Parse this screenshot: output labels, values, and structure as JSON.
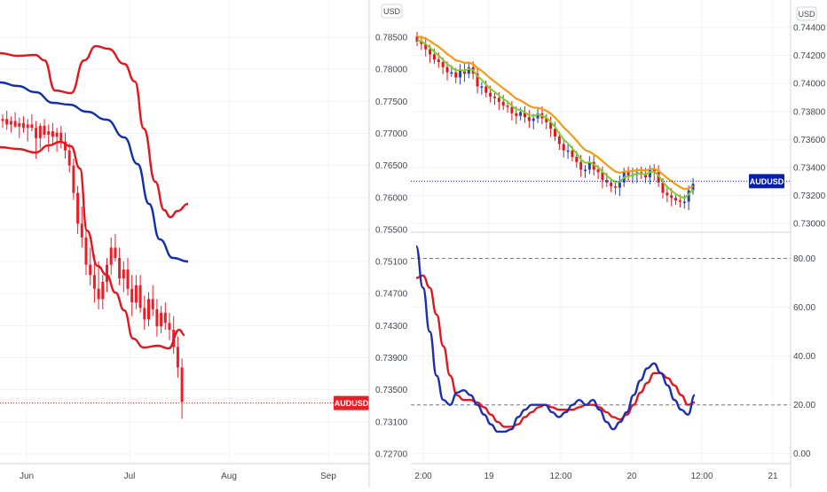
{
  "left_panel": {
    "currency_badge": "USD",
    "price_ticks": [
      "0.78500",
      "0.78000",
      "0.77500",
      "0.77000",
      "0.76500",
      "0.76000",
      "0.75500",
      "0.75100",
      "0.74700",
      "0.74300",
      "0.73900",
      "0.73500",
      "0.73100",
      "0.72700"
    ],
    "time_ticks": [
      "Jun",
      "Jul",
      "Aug",
      "Sep"
    ],
    "symbol_tag": "AUDUSD",
    "last_price": 0.7333,
    "colors": {
      "candles": "#ee1c25",
      "upper_band": "#e4161d",
      "lower_band": "#e4161d",
      "middle_band": "#0f2fad",
      "tag": "#ee1c25"
    }
  },
  "right_panel": {
    "currency_badge": "USD",
    "price_ticks": [
      "0.74400",
      "0.74200",
      "0.74000",
      "0.73800",
      "0.73600",
      "0.73400",
      "0.73200",
      "0.73000"
    ],
    "time_ticks": [
      "2:00",
      "19",
      "12:00",
      "20",
      "12:00",
      "21"
    ],
    "symbol_tag": "AUDUSD",
    "last_price": 0.7331,
    "colors": {
      "up": "#2941b5",
      "down": "#e4161d",
      "ma_fast": "#7cd12c",
      "ma_slow": "#f39c12",
      "tag": "#0a1ea8"
    }
  },
  "oscillator": {
    "ticks": [
      "80.00",
      "60.00",
      "40.00",
      "20.00",
      "0.00"
    ],
    "levels": [
      80,
      20
    ],
    "colors": {
      "fast": "#1b2fb0",
      "slow": "#e4161d"
    }
  },
  "chart_data": [
    {
      "type": "candlestick",
      "symbol": "AUDUSD",
      "x_ticks": [
        "Jun",
        "Jul",
        "Aug",
        "Sep"
      ],
      "ylim": [
        0.726,
        0.787
      ],
      "overlays": [
        "upper band (red)",
        "middle band (blue)",
        "lower band (red)"
      ],
      "candles_ohlc": [
        [
          0.7745,
          0.7755,
          0.7735,
          0.7748
        ],
        [
          0.7748,
          0.776,
          0.7732,
          0.774
        ],
        [
          0.774,
          0.7752,
          0.7728,
          0.7745
        ],
        [
          0.7745,
          0.7758,
          0.7735,
          0.7737
        ],
        [
          0.7737,
          0.775,
          0.772,
          0.7742
        ],
        [
          0.7742,
          0.7752,
          0.7728,
          0.7735
        ],
        [
          0.7735,
          0.7748,
          0.7715,
          0.774
        ],
        [
          0.774,
          0.7755,
          0.773,
          0.7735
        ],
        [
          0.7735,
          0.7745,
          0.769,
          0.772
        ],
        [
          0.772,
          0.7742,
          0.7705,
          0.7738
        ],
        [
          0.7738,
          0.7748,
          0.772,
          0.7725
        ],
        [
          0.7725,
          0.774,
          0.77,
          0.773
        ],
        [
          0.773,
          0.7742,
          0.7712,
          0.7722
        ],
        [
          0.7722,
          0.7735,
          0.77,
          0.7728
        ],
        [
          0.7728,
          0.7738,
          0.7705,
          0.7715
        ],
        [
          0.7715,
          0.7728,
          0.769,
          0.7702
        ],
        [
          0.7702,
          0.7712,
          0.767,
          0.768
        ],
        [
          0.768,
          0.769,
          0.763,
          0.764
        ],
        [
          0.764,
          0.765,
          0.758,
          0.7595
        ],
        [
          0.7595,
          0.762,
          0.756,
          0.7575
        ],
        [
          0.7575,
          0.759,
          0.752,
          0.7535
        ],
        [
          0.7535,
          0.756,
          0.7505,
          0.752
        ],
        [
          0.752,
          0.755,
          0.748,
          0.75
        ],
        [
          0.75,
          0.754,
          0.747,
          0.7485
        ],
        [
          0.7485,
          0.752,
          0.747,
          0.751
        ],
        [
          0.751,
          0.7545,
          0.7495,
          0.7535
        ],
        [
          0.7535,
          0.7575,
          0.752,
          0.756
        ],
        [
          0.756,
          0.758,
          0.754,
          0.7545
        ],
        [
          0.7545,
          0.756,
          0.7505,
          0.7515
        ],
        [
          0.7515,
          0.754,
          0.7495,
          0.7528
        ],
        [
          0.7528,
          0.7545,
          0.749,
          0.75
        ],
        [
          0.75,
          0.752,
          0.746,
          0.748
        ],
        [
          0.748,
          0.752,
          0.747,
          0.7505
        ],
        [
          0.7505,
          0.752,
          0.7465,
          0.7472
        ],
        [
          0.7472,
          0.749,
          0.744,
          0.7455
        ],
        [
          0.7455,
          0.7495,
          0.7445,
          0.7485
        ],
        [
          0.7485,
          0.7505,
          0.746,
          0.747
        ],
        [
          0.747,
          0.7485,
          0.743,
          0.7445
        ],
        [
          0.7445,
          0.7475,
          0.7435,
          0.7465
        ],
        [
          0.7465,
          0.748,
          0.744,
          0.745
        ],
        [
          0.745,
          0.7465,
          0.7425,
          0.744
        ],
        [
          0.744,
          0.746,
          0.7405,
          0.7415
        ],
        [
          0.7415,
          0.743,
          0.737,
          0.7385
        ],
        [
          0.7385,
          0.7398,
          0.731,
          0.7335
        ]
      ],
      "last_price": 0.7333
    },
    {
      "type": "candlestick",
      "symbol": "AUDUSD",
      "x_ticks": [
        "2:00",
        "19",
        "12:00",
        "20",
        "12:00",
        "21"
      ],
      "ylim": [
        0.7296,
        0.7451
      ],
      "overlays": [
        "fast moving average (green)",
        "slow moving average (orange)"
      ],
      "closes": [
        0.744,
        0.7438,
        0.7434,
        0.743,
        0.7426,
        0.7424,
        0.742,
        0.7416,
        0.7416,
        0.7412,
        0.7418,
        0.7415,
        0.742,
        0.7415,
        0.7405,
        0.7405,
        0.74,
        0.7397,
        0.7396,
        0.7393,
        0.739,
        0.7389,
        0.7384,
        0.7382,
        0.7385,
        0.7381,
        0.7378,
        0.738,
        0.7384,
        0.738,
        0.7377,
        0.7372,
        0.7366,
        0.736,
        0.7355,
        0.7355,
        0.735,
        0.7346,
        0.734,
        0.734,
        0.7346,
        0.734,
        0.7338,
        0.7332,
        0.733,
        0.7327,
        0.7326,
        0.733,
        0.7338,
        0.7335,
        0.7336,
        0.7338,
        0.7336,
        0.7334,
        0.734,
        0.7338,
        0.733,
        0.7322,
        0.732,
        0.7318,
        0.7316,
        0.7315,
        0.7315,
        0.7324,
        0.7329
      ],
      "last_price": 0.7331
    },
    {
      "type": "line",
      "name": "oscillator",
      "x_ticks": [
        "2:00",
        "19",
        "12:00",
        "20",
        "12:00",
        "21"
      ],
      "ylim": [
        -3,
        90
      ],
      "series": [
        {
          "values": [
            85,
            68,
            50,
            32,
            22,
            20,
            25,
            26,
            24,
            20,
            16,
            12,
            9,
            9,
            10,
            15,
            18,
            20,
            20,
            20,
            17,
            15,
            17,
            20,
            22,
            20,
            22,
            18,
            13,
            10,
            13,
            17,
            24,
            30,
            35,
            37,
            33,
            28,
            22,
            18,
            16,
            24
          ]
        },
        {
          "values": [
            72,
            73,
            68,
            57,
            44,
            32,
            24,
            22,
            22,
            21,
            19,
            16,
            13,
            11,
            11,
            12,
            15,
            17,
            19,
            20,
            19,
            18,
            18,
            18,
            19,
            20,
            20,
            19,
            17,
            15,
            14,
            16,
            20,
            25,
            29,
            33,
            33,
            31,
            28,
            24,
            20,
            21
          ]
        }
      ],
      "levels": [
        80,
        20
      ]
    }
  ]
}
